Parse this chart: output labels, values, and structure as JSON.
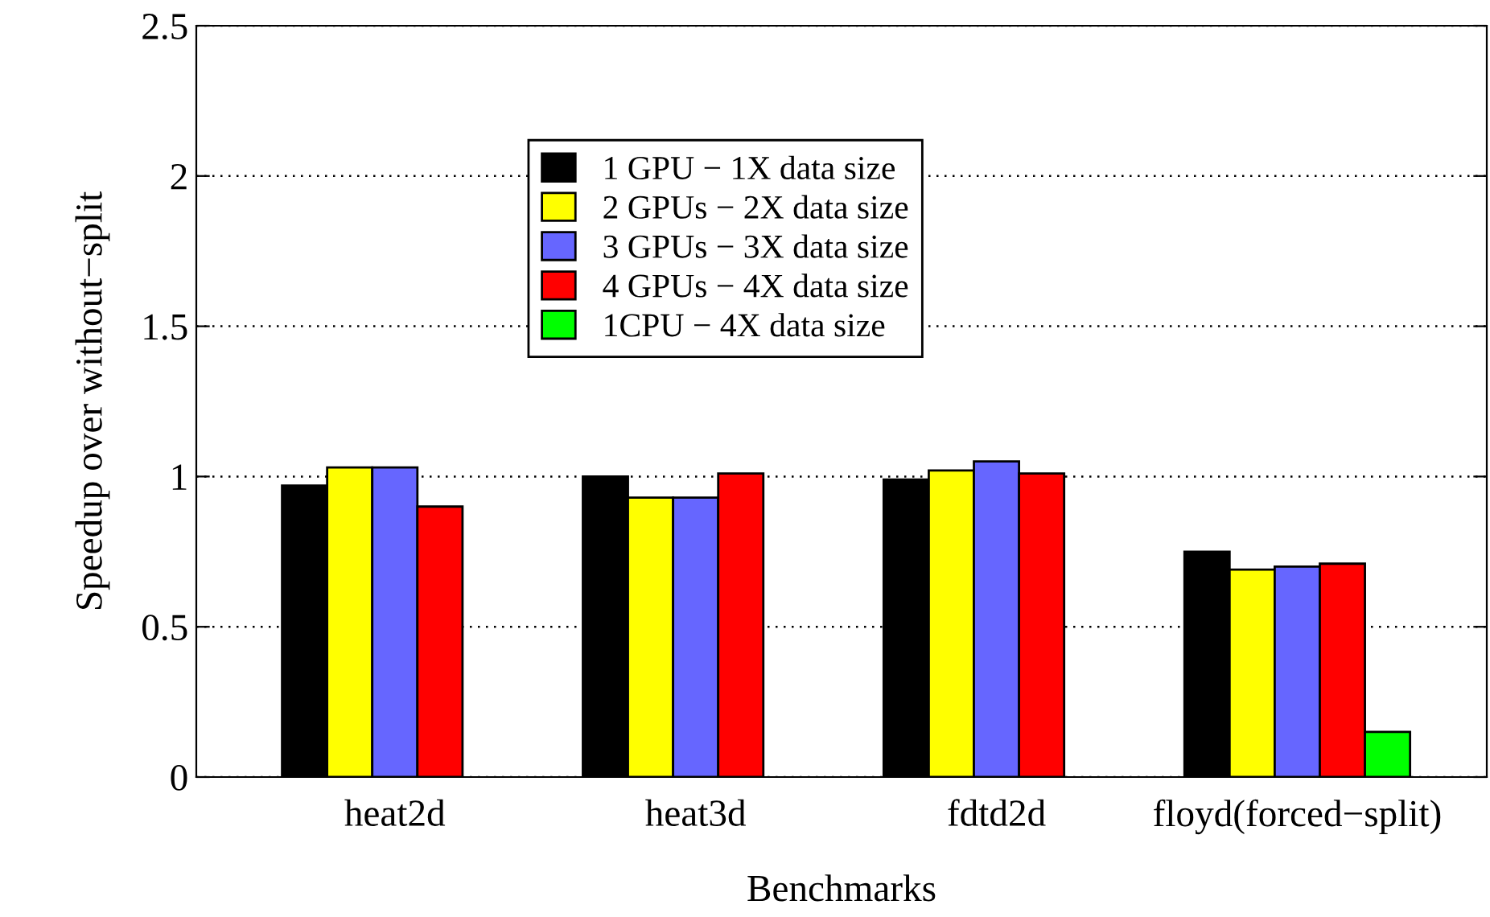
{
  "chart_data": {
    "type": "bar",
    "xlabel": "Benchmarks",
    "ylabel": "Speedup over without−split",
    "categories": [
      "heat2d",
      "heat3d",
      "fdtd2d",
      "floyd(forced−split)"
    ],
    "series": [
      {
        "name": "1 GPU − 1X data size",
        "color": "#000000",
        "values": [
          0.97,
          1.0,
          0.99,
          0.75
        ]
      },
      {
        "name": "2 GPUs − 2X data size",
        "color": "#ffff00",
        "values": [
          1.03,
          0.93,
          1.02,
          0.69
        ]
      },
      {
        "name": "3 GPUs − 3X data size",
        "color": "#6666ff",
        "values": [
          1.03,
          0.93,
          1.05,
          0.7
        ]
      },
      {
        "name": "4 GPUs − 4X data size",
        "color": "#ff0000",
        "values": [
          0.9,
          1.01,
          1.01,
          0.71
        ]
      },
      {
        "name": "1CPU − 4X data size",
        "color": "#00ff00",
        "values": [
          null,
          null,
          null,
          0.15
        ]
      }
    ],
    "ylim": [
      0,
      2.5
    ],
    "yticks": [
      0,
      0.5,
      1,
      1.5,
      2,
      2.5
    ],
    "grid": "y",
    "legend": "top"
  }
}
